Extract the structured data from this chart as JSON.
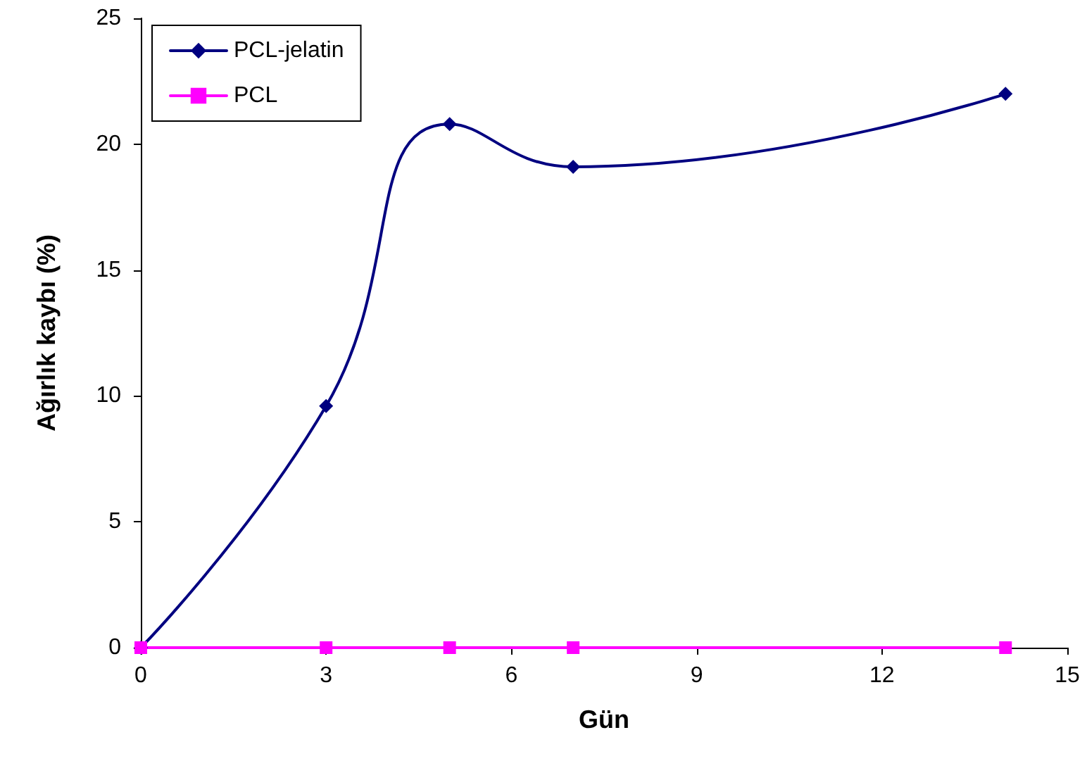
{
  "chart_data": {
    "type": "line",
    "xlabel": "Gün",
    "ylabel": "Ağırlık kaybı (%)",
    "xlim": [
      0,
      15
    ],
    "xticks": [
      0,
      3,
      6,
      9,
      12,
      15
    ],
    "ylim": [
      0,
      25
    ],
    "yticks": [
      0,
      5,
      10,
      15,
      20,
      25
    ],
    "grid": false,
    "legend": "top left",
    "line_style": "solid",
    "series": [
      {
        "name": "PCL-jelatin",
        "color": "#000080",
        "marker": "diamond",
        "x": [
          0,
          3,
          5,
          7,
          14
        ],
        "values": [
          0,
          9.6,
          20.8,
          19.1,
          22.0
        ]
      },
      {
        "name": "PCL",
        "color": "#ff00ff",
        "marker": "square",
        "x": [
          0,
          3,
          5,
          7,
          14
        ],
        "values": [
          0,
          0,
          0,
          0,
          0
        ]
      }
    ]
  }
}
